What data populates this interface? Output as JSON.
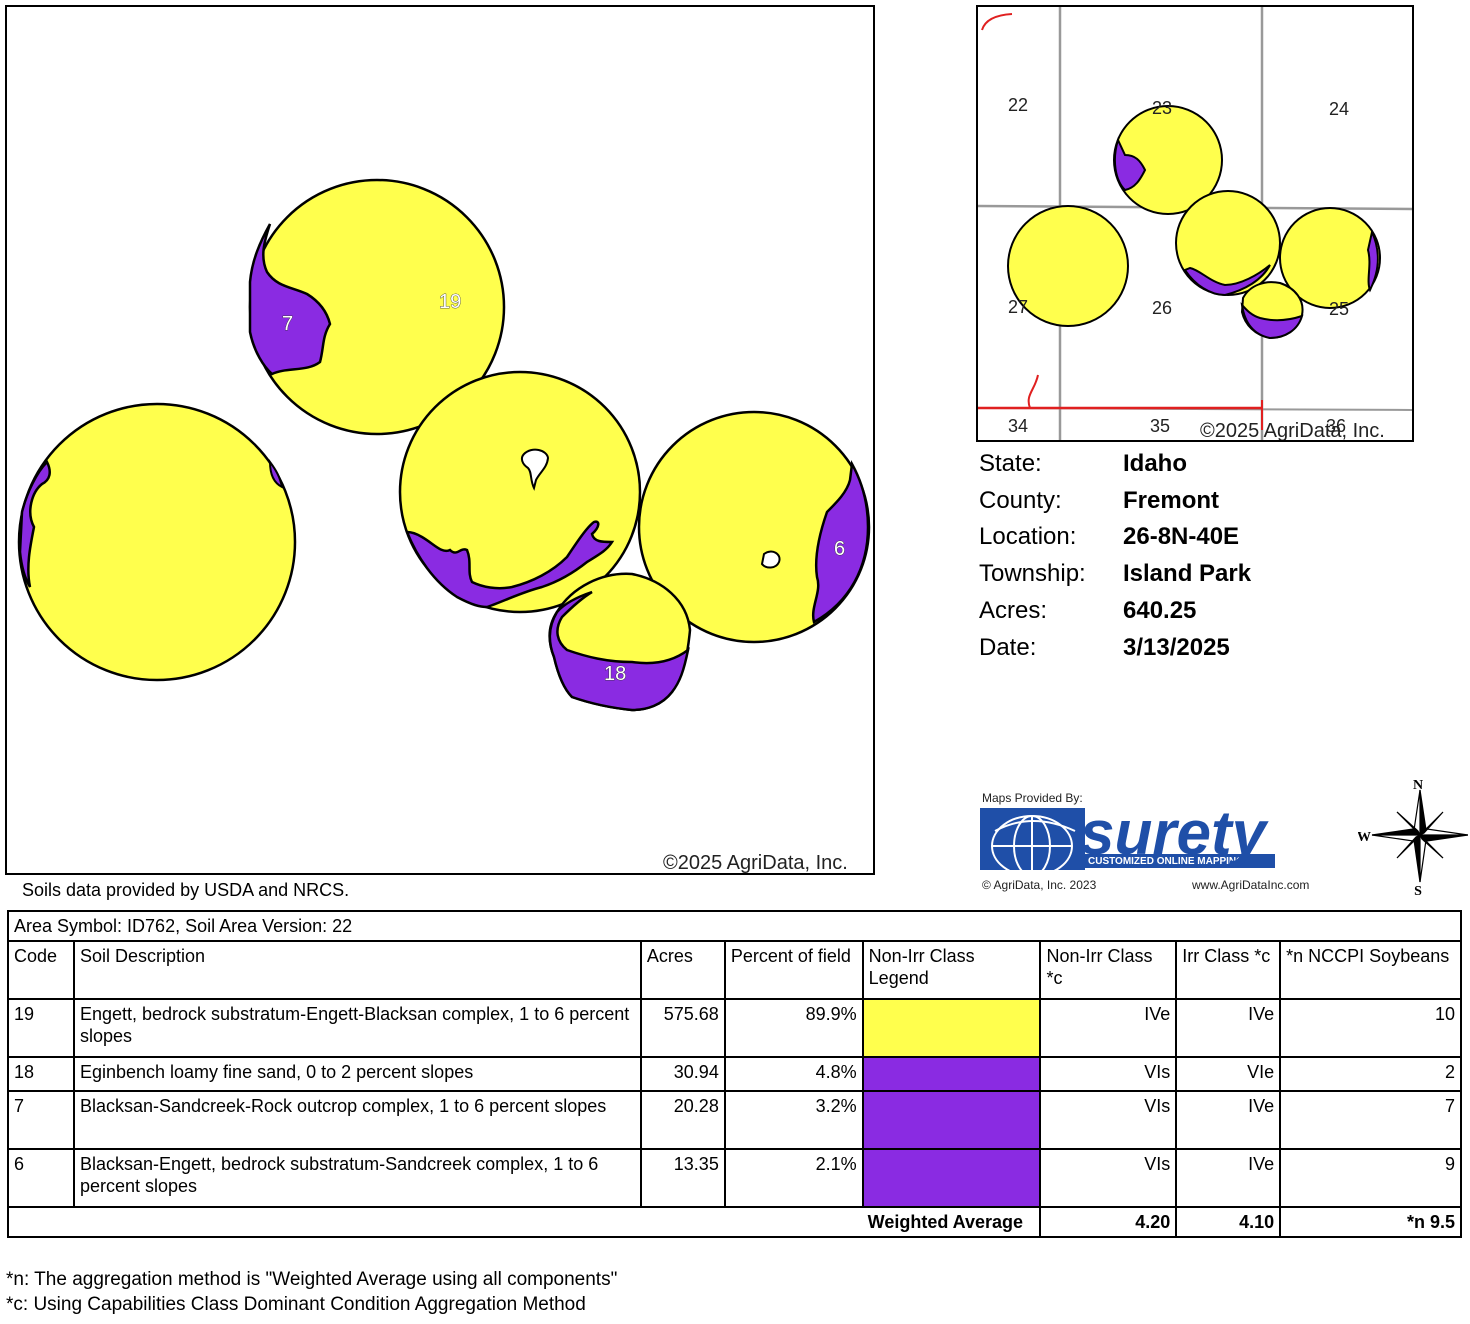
{
  "main_map": {
    "copyright": "©2025 AgriData, Inc.",
    "labels": [
      {
        "text": "19"
      },
      {
        "text": "7"
      },
      {
        "text": "6"
      },
      {
        "text": "18"
      }
    ]
  },
  "inset_map": {
    "copyright": "©2025 AgriData, Inc.",
    "sections": [
      "22",
      "23",
      "24",
      "27",
      "26",
      "25",
      "34",
      "35",
      "36"
    ]
  },
  "info": {
    "state_label": "State:",
    "state": "Idaho",
    "county_label": "County:",
    "county": "Fremont",
    "location_label": "Location:",
    "location": "26-8N-40E",
    "township_label": "Township:",
    "township": "Island Park",
    "acres_label": "Acres:",
    "acres": "640.25",
    "date_label": "Date:",
    "date": "3/13/2025"
  },
  "surety": {
    "provided_by": "Maps Provided By:",
    "brand": "surety",
    "tagline": "CUSTOMIZED ONLINE MAPPING",
    "copyright": "© AgriData, Inc. 2023",
    "url": "www.AgriDataInc.com"
  },
  "compass": {
    "n": "N",
    "s": "S",
    "w": "W"
  },
  "soils_source": "Soils data provided by USDA and NRCS.",
  "table": {
    "area_symbol": "Area Symbol: ID762, Soil Area Version: 22",
    "headers": [
      "Code",
      "Soil Description",
      "Acres",
      "Percent of field",
      "Non-Irr Class Legend",
      "Non-Irr Class *c",
      "Irr Class *c",
      "*n NCCPI Soybeans"
    ],
    "rows": [
      {
        "code": "19",
        "desc": "Engett, bedrock substratum-Engett-Blacksan complex, 1 to 6 percent slopes",
        "acres": "575.68",
        "percent": "89.9%",
        "color": "#ffff4d",
        "nonirr": "IVe",
        "irr": "IVe",
        "nccpi": "10"
      },
      {
        "code": "18",
        "desc": "Eginbench loamy fine sand, 0 to 2 percent slopes",
        "acres": "30.94",
        "percent": "4.8%",
        "color": "#8a2be2",
        "nonirr": "VIs",
        "irr": "VIe",
        "nccpi": "2"
      },
      {
        "code": "7",
        "desc": "Blacksan-Sandcreek-Rock outcrop complex, 1 to 6 percent slopes",
        "acres": "20.28",
        "percent": "3.2%",
        "color": "#8a2be2",
        "nonirr": "VIs",
        "irr": "IVe",
        "nccpi": "7"
      },
      {
        "code": "6",
        "desc": "Blacksan-Engett, bedrock substratum-Sandcreek complex, 1 to 6 percent slopes",
        "acres": "13.35",
        "percent": "2.1%",
        "color": "#8a2be2",
        "nonirr": "VIs",
        "irr": "IVe",
        "nccpi": "9"
      }
    ],
    "weighted_label": "Weighted Average",
    "weighted_nonirr": "4.20",
    "weighted_irr": "4.10",
    "weighted_nccpi": "*n 9.5"
  },
  "footnotes": {
    "n": "*n: The aggregation method is \"Weighted Average using all components\"",
    "c": "*c: Using Capabilities Class Dominant Condition Aggregation Method"
  },
  "colors": {
    "yellow": "#ffff4d",
    "purple": "#8a2be2"
  }
}
